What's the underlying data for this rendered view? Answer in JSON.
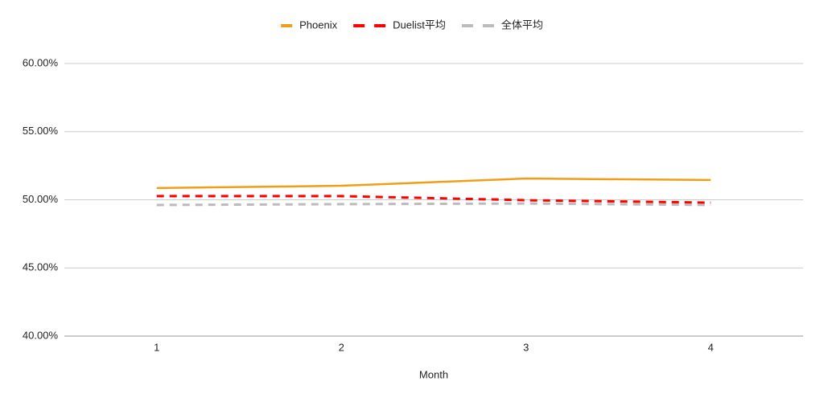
{
  "chart_data": {
    "type": "line",
    "categories": [
      "1",
      "2",
      "3",
      "4"
    ],
    "x_label": "Month",
    "series": [
      {
        "name": "Phoenix",
        "color": "#f29d17",
        "dashed": false,
        "values": [
          50.86,
          51.03,
          51.56,
          51.45
        ]
      },
      {
        "name": "Duelist平均",
        "color": "#ff0000",
        "dashed": true,
        "values": [
          50.27,
          50.27,
          49.97,
          49.79
        ]
      },
      {
        "name": "全体平均",
        "color": "#bbbbbb",
        "dashed": true,
        "values": [
          49.62,
          49.68,
          49.73,
          49.62
        ]
      }
    ],
    "ylim": [
      40,
      60
    ],
    "yticks": [
      {
        "value": 40,
        "label": "40.00%"
      },
      {
        "value": 45,
        "label": "45.00%"
      },
      {
        "value": 50,
        "label": "50.00%"
      },
      {
        "value": 55,
        "label": "55.00%"
      },
      {
        "value": 60,
        "label": "60.00%"
      }
    ],
    "grid": true,
    "legend": "top"
  }
}
